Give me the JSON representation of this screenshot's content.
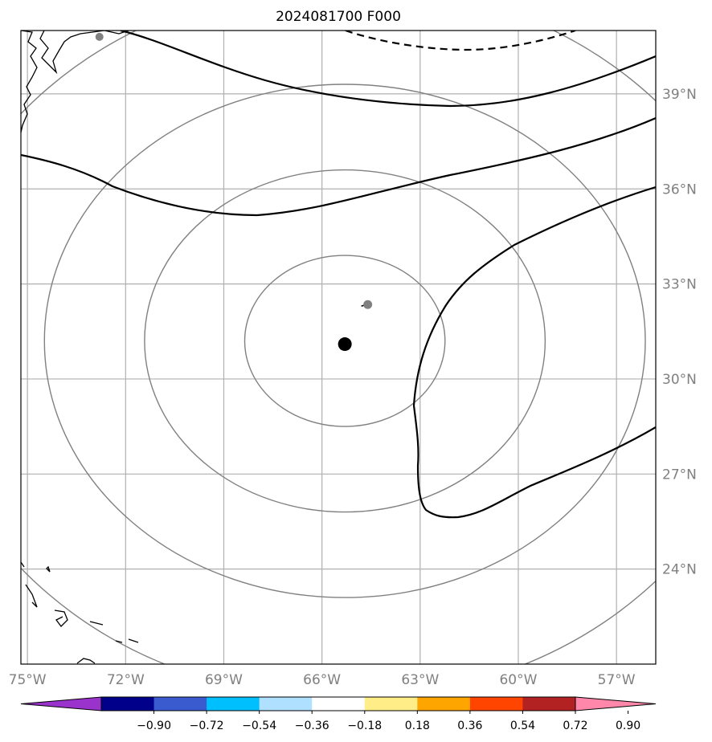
{
  "title": "2024081700 F000",
  "map": {
    "lon_range": [
      -75.2,
      -55.8
    ],
    "lat_range": [
      21,
      41
    ],
    "lon_ticks": [
      {
        "value": -75,
        "label": "75°W"
      },
      {
        "value": -72,
        "label": "72°W"
      },
      {
        "value": -69,
        "label": "69°W"
      },
      {
        "value": -66,
        "label": "66°W"
      },
      {
        "value": -63,
        "label": "63°W"
      },
      {
        "value": -60,
        "label": "60°W"
      },
      {
        "value": -57,
        "label": "57°W"
      }
    ],
    "lat_ticks": [
      {
        "value": 24,
        "label": "24°N"
      },
      {
        "value": 27,
        "label": "27°N"
      },
      {
        "value": 30,
        "label": "30°N"
      },
      {
        "value": 33,
        "label": "33°N"
      },
      {
        "value": 36,
        "label": "36°N"
      },
      {
        "value": 39,
        "label": "39°N"
      }
    ],
    "storm_center": {
      "lon": -65.3,
      "lat": 31.1
    },
    "secondary_point": {
      "lon": -64.6,
      "lat": 32.35
    },
    "coast_point": {
      "lon": -72.8,
      "lat": 40.8
    },
    "range_rings_deg": [
      2.7,
      5.4,
      8.1,
      11.3
    ],
    "colors": {
      "grid": "#b0b0b0",
      "ring": "#808080",
      "contour": "#000000"
    }
  },
  "colorbar": {
    "labels": [
      "−0.90",
      "−0.72",
      "−0.54",
      "−0.36",
      "−0.18",
      "0.18",
      "0.36",
      "0.54",
      "0.72",
      "0.90"
    ],
    "colors": [
      "#9933cc",
      "#00008b",
      "#3a5bcf",
      "#00bfff",
      "#b0e0ff",
      "#ffffff",
      "#ffee88",
      "#ffa500",
      "#ff4500",
      "#b22222",
      "#ff88aa"
    ]
  }
}
